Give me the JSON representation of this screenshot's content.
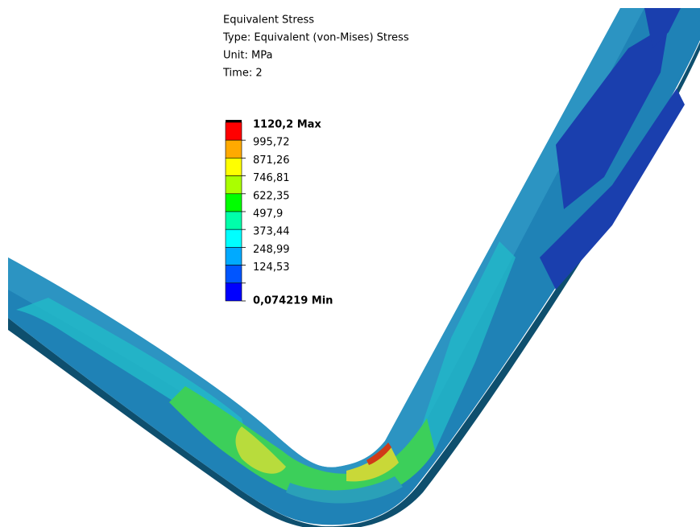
{
  "header": {
    "lines": [
      "Equivalent Stress",
      "Type: Equivalent (von-Mises) Stress",
      "Unit: MPa",
      "Time: 2"
    ]
  },
  "legend": {
    "labels": [
      "1120,2 Max",
      "995,72",
      "871,26",
      "746,81",
      "622,35",
      "497,9",
      "373,44",
      "248,99",
      "124,53",
      "0,074219 Min"
    ],
    "bands": [
      "#ff0000",
      "#ffaa00",
      "#ffff00",
      "#aaff00",
      "#00ff00",
      "#00ffaa",
      "#00ffff",
      "#00aaff",
      "#0055ff",
      "#0000ff"
    ]
  }
}
